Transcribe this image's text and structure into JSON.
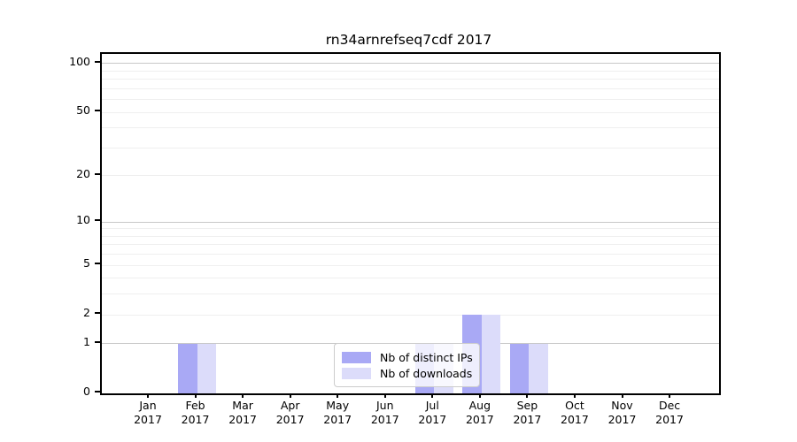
{
  "title": "rn34arnrefseq7cdf 2017",
  "chart_data": {
    "type": "bar",
    "title": "rn34arnrefseq7cdf 2017",
    "categories": [
      "Jan",
      "Feb",
      "Mar",
      "Apr",
      "May",
      "Jun",
      "Jul",
      "Aug",
      "Sep",
      "Oct",
      "Nov",
      "Dec"
    ],
    "year": "2017",
    "series": [
      {
        "name": "Nb of distinct IPs",
        "color": "#a9a9f5",
        "values": [
          0,
          1,
          0,
          0,
          0,
          0,
          1,
          2,
          1,
          0,
          0,
          0
        ]
      },
      {
        "name": "Nb of downloads",
        "color": "#dcdcfa",
        "values": [
          0,
          1,
          0,
          0,
          0,
          0,
          1,
          2,
          1,
          0,
          0,
          0
        ]
      }
    ],
    "xlabel": "",
    "ylabel": "",
    "y_scale": "log1p",
    "y_ticks": [
      0,
      1,
      2,
      5,
      10,
      20,
      50,
      100
    ],
    "major_gridlines": [
      1,
      10,
      100
    ],
    "minor_gridlines": [
      2,
      3,
      4,
      5,
      6,
      7,
      8,
      9,
      20,
      30,
      40,
      50,
      60,
      70,
      80,
      90
    ],
    "ylim": [
      0,
      115
    ],
    "grid": "horizontal",
    "legend_position": "lower center"
  },
  "colors": {
    "background": "#ffffff",
    "spine": "#000000",
    "grid_major": "#c8c8c8",
    "grid_minor": "#efefef",
    "bar_distinct_ips": "#a9a9f5",
    "bar_downloads": "#dcdcfa",
    "legend_border": "#cccccc",
    "text": "#000000"
  }
}
